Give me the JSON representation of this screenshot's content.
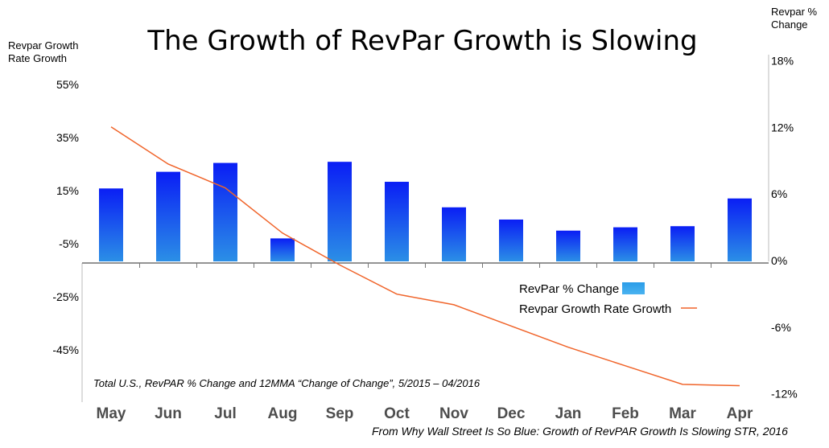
{
  "chart_data": {
    "type": "bar",
    "title": "The Growth of RevPar Growth is Slowing",
    "categories": [
      "May",
      "Jun",
      "Jul",
      "Aug",
      "Sep",
      "Oct",
      "Nov",
      "Dec",
      "Jan",
      "Feb",
      "Mar",
      "Apr"
    ],
    "left_axis": {
      "label": "Revpar Growth Rate Growth",
      "ticks": [
        "55%",
        "35%",
        "15%",
        "-5%",
        "-25%",
        "-45%"
      ],
      "tick_values": [
        55,
        35,
        15,
        -5,
        -25,
        -45
      ]
    },
    "right_axis": {
      "label": "Revpar % Change",
      "ticks": [
        "18%",
        "12%",
        "6%",
        "0%",
        "-6%",
        "-12%"
      ],
      "tick_values": [
        18,
        12,
        6,
        0,
        -6,
        -12
      ]
    },
    "series": [
      {
        "name": "RevPar % Change",
        "kind": "bar",
        "axis": "right",
        "color": "#1d4cf0",
        "values": [
          6.5,
          8.0,
          8.8,
          2.0,
          8.9,
          7.1,
          4.8,
          3.7,
          2.7,
          3.0,
          3.1,
          5.6
        ]
      },
      {
        "name": "Revpar Growth Rate Growth",
        "kind": "line",
        "axis": "left",
        "color": "#f0642a",
        "values": [
          39,
          25,
          16,
          -1,
          -13,
          -24,
          -28,
          -36,
          -44,
          -51,
          -58,
          -58.5
        ]
      }
    ],
    "legend_position": "right-middle",
    "annotation": "Total U.S., RevPAR % Change and  12MMA “Change of Change”, 5/2015  – 04/2016",
    "source": "From Why Wall Street Is So Blue: Growth of RevPAR Growth Is Slowing  STR, 2016"
  }
}
